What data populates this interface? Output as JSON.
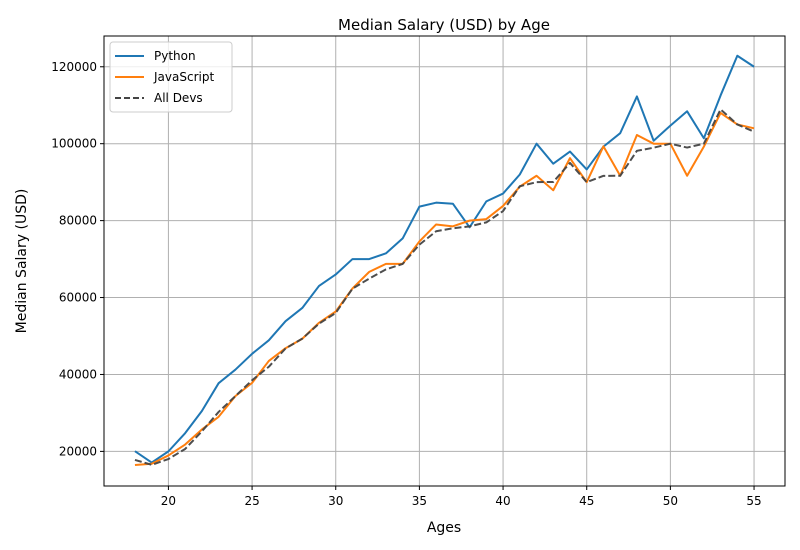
{
  "chart_data": {
    "type": "line",
    "title": "Median Salary (USD) by Age",
    "xlabel": "Ages",
    "ylabel": "Median Salary (USD)",
    "xlim": [
      16.15,
      56.85
    ],
    "ylim": [
      11000,
      128000
    ],
    "xticks": [
      20,
      25,
      30,
      35,
      40,
      45,
      50,
      55
    ],
    "yticks": [
      20000,
      40000,
      60000,
      80000,
      100000,
      120000
    ],
    "grid": true,
    "legend_position": "top-left",
    "x": [
      18,
      19,
      20,
      21,
      22,
      23,
      24,
      25,
      26,
      27,
      28,
      29,
      30,
      31,
      32,
      33,
      34,
      35,
      36,
      37,
      38,
      39,
      40,
      41,
      42,
      43,
      44,
      45,
      46,
      47,
      48,
      49,
      50,
      51,
      52,
      53,
      54,
      55
    ],
    "series": [
      {
        "name": "Python",
        "color": "#1f77b4",
        "dash": "solid",
        "values": [
          20046,
          17100,
          20000,
          24744,
          30500,
          37732,
          41247,
          45372,
          48876,
          53850,
          57287,
          63016,
          65998,
          70003,
          70000,
          71496,
          75370,
          83640,
          84666,
          84392,
          78254,
          85000,
          87038,
          91991,
          100000,
          94796,
          97962,
          93302,
          99240,
          102736,
          112285,
          100771,
          104708,
          108423,
          101407,
          112542,
          122870,
          120000
        ]
      },
      {
        "name": "JavaScript",
        "color": "#ff7f0e",
        "dash": "solid",
        "values": [
          16446,
          16791,
          18942,
          21780,
          25704,
          29000,
          34372,
          37810,
          43515,
          46823,
          49293,
          53437,
          56373,
          62375,
          66674,
          68745,
          68746,
          74583,
          79000,
          78508,
          79996,
          80403,
          83820,
          88833,
          91660,
          87892,
          96243,
          90000,
          99313,
          91660,
          102264,
          100000,
          100000,
          91660,
          99240,
          108000,
          105000,
          104000
        ]
      },
      {
        "name": "All Devs",
        "color": "#444444",
        "dash": "dashed",
        "values": [
          17784,
          16500,
          18012,
          20628,
          25206,
          30252,
          34368,
          38496,
          42000,
          46752,
          49320,
          53200,
          56000,
          62316,
          64928,
          67317,
          68748,
          73752,
          77232,
          78000,
          78508,
          79536,
          82488,
          88935,
          90000,
          90056,
          95000,
          90000,
          91633,
          91660,
          98150,
          98964,
          100000,
          98988,
          100000,
          108923,
          105000,
          103117
        ]
      }
    ]
  }
}
